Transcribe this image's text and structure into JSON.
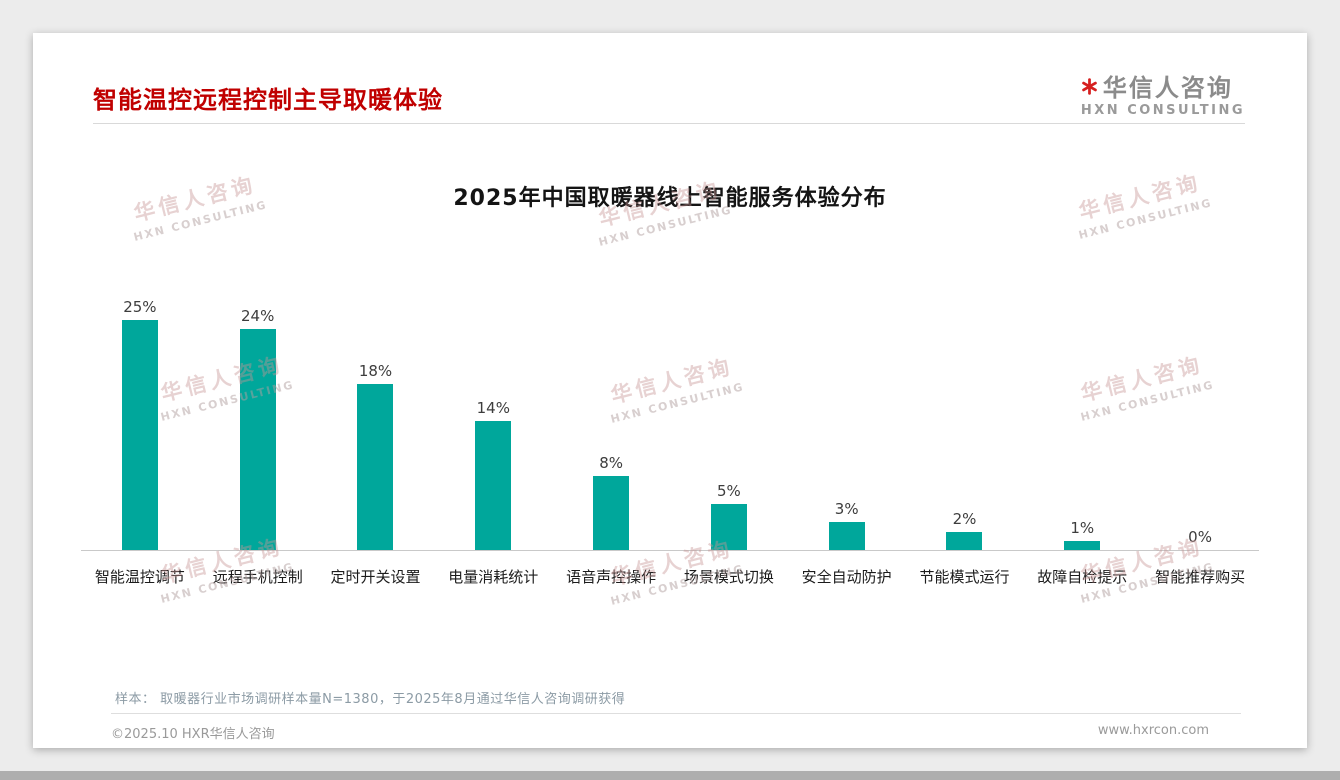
{
  "header": {
    "title": "智能温控远程控制主导取暖体验"
  },
  "logo": {
    "name": "华信人咨询",
    "subtitle": "HXN CONSULTING"
  },
  "watermark": {
    "line1": "华信人咨询",
    "line2": "HXN CONSULTING"
  },
  "chart_data": {
    "type": "bar",
    "title": "2025年中国取暖器线上智能服务体验分布",
    "categories": [
      "智能温控调节",
      "远程手机控制",
      "定时开关设置",
      "电量消耗统计",
      "语音声控操作",
      "场景模式切换",
      "安全自动防护",
      "节能模式运行",
      "故障自检提示",
      "智能推荐购买"
    ],
    "values": [
      25,
      24,
      18,
      14,
      8,
      5,
      3,
      2,
      1,
      0
    ],
    "value_labels": [
      "25%",
      "24%",
      "18%",
      "14%",
      "8%",
      "5%",
      "3%",
      "2%",
      "1%",
      "0%"
    ],
    "xlabel": "",
    "ylabel": "",
    "ylim": [
      0,
      27
    ],
    "grid": false,
    "legend": false,
    "bar_color": "#00A79B"
  },
  "footer": {
    "note": "样本： 取暖器行业市场调研样本量N=1380，于2025年8月通过华信人咨询调研获得",
    "copyright": "©2025.10 HXR华信人咨询",
    "website": "www.hxrcon.com"
  },
  "colors": {
    "title_red": "#C00000",
    "bar_teal": "#00A79B",
    "page_background": "#ECECEC",
    "card_background": "#FFFFFF"
  }
}
